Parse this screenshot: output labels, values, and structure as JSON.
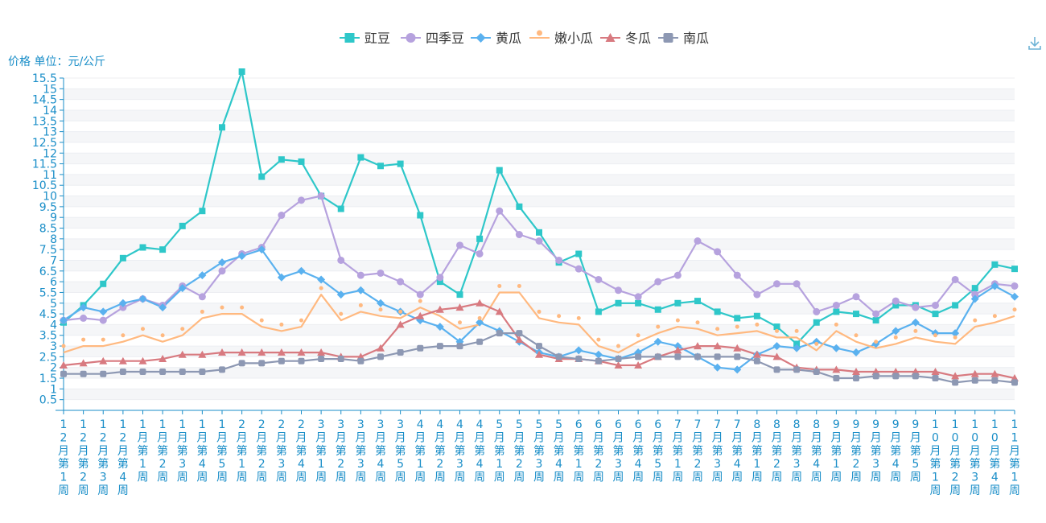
{
  "toolbar": {
    "unit_label": "价格 单位：元/公斤",
    "download_icon": "download-icon"
  },
  "chart_data": {
    "type": "line",
    "title": "",
    "xlabel": "",
    "ylabel": "价格 单位：元/公斤",
    "ylim": [
      0.5,
      15.5
    ],
    "yticks": [
      "0.5",
      "1",
      "1.5",
      "2",
      "2.5",
      "3",
      "3.5",
      "4",
      "4.5",
      "5",
      "5.5",
      "6",
      "6.5",
      "7",
      "7.5",
      "8",
      "8.5",
      "9",
      "9.5",
      "10",
      "10.5",
      "11",
      "11.5",
      "12",
      "12.5",
      "13",
      "13.5",
      "14",
      "14.5",
      "15",
      "15.5"
    ],
    "grid": true,
    "legend_position": "top-center",
    "categories": [
      "12月第1周",
      "12月第2周",
      "12月第3周",
      "12月第4周",
      "1月第1周",
      "1月第2周",
      "1月第3周",
      "1月第4周",
      "1月第5周",
      "2月第1周",
      "2月第2周",
      "2月第3周",
      "2月第4周",
      "3月第1周",
      "3月第2周",
      "3月第3周",
      "3月第4周",
      "3月第5周",
      "4月第1周",
      "4月第2周",
      "4月第3周",
      "4月第4周",
      "5月第1周",
      "5月第2周",
      "5月第3周",
      "5月第4周",
      "6月第1周",
      "6月第2周",
      "6月第3周",
      "6月第4周",
      "6月第5周",
      "7月第1周",
      "7月第2周",
      "7月第3周",
      "7月第4周",
      "8月第1周",
      "8月第2周",
      "8月第3周",
      "8月第4周",
      "9月第1周",
      "9月第2周",
      "9月第3周",
      "9月第4周",
      "9月第5周",
      "10月第1周",
      "10月第2周",
      "10月第3周",
      "10月第4周",
      "11月第1周"
    ],
    "series": [
      {
        "name": "豇豆",
        "color": "#2ec7c9",
        "marker": "square",
        "values": [
          4.1,
          4.9,
          5.9,
          7.1,
          7.6,
          7.5,
          8.6,
          9.3,
          13.2,
          15.8,
          10.9,
          11.7,
          11.6,
          10.0,
          9.4,
          11.8,
          11.4,
          11.5,
          9.1,
          6.0,
          5.4,
          8.0,
          11.2,
          9.5,
          8.3,
          6.9,
          7.3,
          4.6,
          5.0,
          5.0,
          4.7,
          5.0,
          5.1,
          4.6,
          4.3,
          4.4,
          3.9,
          3.1,
          4.1,
          4.6,
          4.5,
          4.2,
          4.9,
          4.9,
          4.5,
          4.9,
          5.7,
          6.8,
          6.6
        ]
      },
      {
        "name": "四季豆",
        "color": "#b6a2de",
        "marker": "circle",
        "values": [
          4.2,
          4.3,
          4.2,
          4.8,
          5.2,
          4.9,
          5.8,
          5.3,
          6.5,
          7.3,
          7.6,
          9.1,
          9.8,
          10.0,
          7.0,
          6.3,
          6.4,
          6.0,
          5.4,
          6.2,
          7.7,
          7.3,
          9.3,
          8.2,
          7.9,
          7.0,
          6.6,
          6.1,
          5.6,
          5.3,
          6.0,
          6.3,
          7.9,
          7.4,
          6.3,
          5.4,
          5.9,
          5.9,
          4.6,
          4.9,
          5.3,
          4.5,
          5.1,
          4.8,
          4.9,
          6.1,
          5.4,
          5.9,
          5.8
        ]
      },
      {
        "name": "黄瓜",
        "color": "#5ab1ef",
        "marker": "diamond",
        "values": [
          4.2,
          4.8,
          4.6,
          5.0,
          5.2,
          4.8,
          5.7,
          6.3,
          6.9,
          7.2,
          7.5,
          6.2,
          6.5,
          6.1,
          5.4,
          5.6,
          5.0,
          4.6,
          4.2,
          3.9,
          3.2,
          4.1,
          3.7,
          3.2,
          2.7,
          2.5,
          2.8,
          2.6,
          2.4,
          2.7,
          3.2,
          3.0,
          2.5,
          2.0,
          1.9,
          2.6,
          3.0,
          2.9,
          3.2,
          2.9,
          2.7,
          3.1,
          3.7,
          4.1,
          3.6,
          3.6,
          5.2,
          5.8,
          5.3
        ]
      },
      {
        "name": "嫩小瓜",
        "color": "#ffb980",
        "marker": "pin",
        "values": [
          2.7,
          3.0,
          3.0,
          3.2,
          3.5,
          3.2,
          3.5,
          4.3,
          4.5,
          4.5,
          3.9,
          3.7,
          3.9,
          5.4,
          4.2,
          4.6,
          4.4,
          4.3,
          4.8,
          4.4,
          3.8,
          4.0,
          5.5,
          5.5,
          4.3,
          4.1,
          4.0,
          3.0,
          2.7,
          3.2,
          3.6,
          3.9,
          3.8,
          3.5,
          3.6,
          3.7,
          3.4,
          3.4,
          2.8,
          3.7,
          3.2,
          2.9,
          3.1,
          3.4,
          3.2,
          3.1,
          3.9,
          4.1,
          4.4
        ]
      },
      {
        "name": "冬瓜",
        "color": "#d87a80",
        "marker": "triangle",
        "values": [
          2.1,
          2.2,
          2.3,
          2.3,
          2.3,
          2.4,
          2.6,
          2.6,
          2.7,
          2.7,
          2.7,
          2.7,
          2.7,
          2.7,
          2.5,
          2.5,
          2.9,
          4.0,
          4.4,
          4.7,
          4.8,
          5.0,
          4.6,
          3.3,
          2.6,
          2.4,
          2.4,
          2.3,
          2.1,
          2.1,
          2.5,
          2.8,
          3.0,
          3.0,
          2.9,
          2.6,
          2.5,
          2.0,
          1.9,
          1.9,
          1.8,
          1.8,
          1.8,
          1.8,
          1.8,
          1.6,
          1.7,
          1.7,
          1.5
        ]
      },
      {
        "name": "南瓜",
        "color": "#8d98b3",
        "marker": "roundsquare",
        "values": [
          1.7,
          1.7,
          1.7,
          1.8,
          1.8,
          1.8,
          1.8,
          1.8,
          1.9,
          2.2,
          2.2,
          2.3,
          2.3,
          2.4,
          2.4,
          2.3,
          2.5,
          2.7,
          2.9,
          3.0,
          3.0,
          3.2,
          3.6,
          3.6,
          3.0,
          2.5,
          2.4,
          2.3,
          2.4,
          2.5,
          2.5,
          2.5,
          2.5,
          2.5,
          2.5,
          2.3,
          1.9,
          1.9,
          1.8,
          1.5,
          1.5,
          1.6,
          1.6,
          1.6,
          1.5,
          1.3,
          1.4,
          1.4,
          1.3
        ]
      }
    ]
  }
}
